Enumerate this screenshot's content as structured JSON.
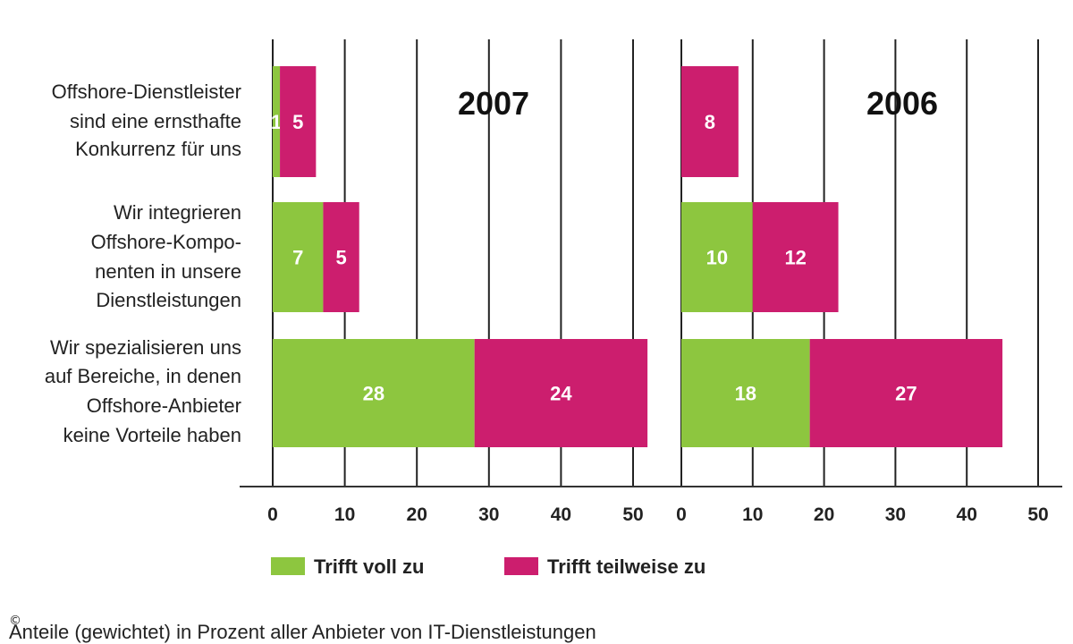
{
  "chart_data": [
    {
      "type": "bar",
      "orientation": "horizontal",
      "stacked": true,
      "title": "2007",
      "categories": [
        [
          "Offshore-Dienstleister",
          "sind eine ernsthafte",
          "Konkurrenz für uns"
        ],
        [
          "Wir integrieren",
          "Offshore-Kompo-",
          "nenten in unsere",
          "Dienstleistungen"
        ],
        [
          "Wir spezialisieren uns",
          "auf Bereiche, in denen",
          "Offshore-Anbieter",
          "keine Vorteile haben"
        ]
      ],
      "series": [
        {
          "name": "Trifft voll zu",
          "values": [
            1,
            7,
            28
          ],
          "color": "#8dc63f"
        },
        {
          "name": "Trifft teilweise zu",
          "values": [
            5,
            5,
            24
          ],
          "color": "#cc1e6e"
        }
      ],
      "xlim": [
        0,
        50
      ],
      "xticks": [
        "0",
        "10",
        "20",
        "30",
        "40",
        "50"
      ],
      "grid": true
    },
    {
      "type": "bar",
      "orientation": "horizontal",
      "stacked": true,
      "title": "2006",
      "series": [
        {
          "name": "Trifft voll zu",
          "values": [
            0,
            10,
            18
          ],
          "color": "#8dc63f"
        },
        {
          "name": "Trifft teilweise zu",
          "values": [
            8,
            12,
            27
          ],
          "color": "#cc1e6e"
        }
      ],
      "xlim": [
        0,
        50
      ],
      "xticks": [
        "0",
        "10",
        "20",
        "30",
        "40",
        "50"
      ],
      "grid": true
    }
  ],
  "legend": {
    "placement": "bottom",
    "items": [
      {
        "label": "Trifft voll zu",
        "color": "#8dc63f"
      },
      {
        "label": "Trifft teilweise zu",
        "color": "#cc1e6e"
      }
    ]
  },
  "footnote": "Anteile (gewichtet) in Prozent aller Anbieter von  IT-Dienstleistungen",
  "copyright_symbol": "©"
}
